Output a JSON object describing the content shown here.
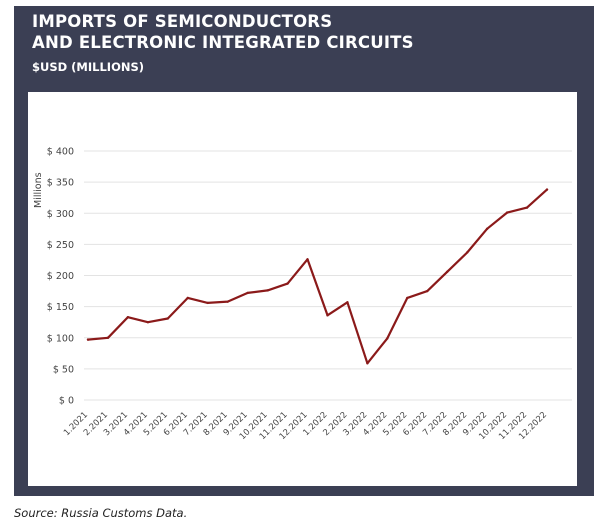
{
  "header": {
    "title_line1": "IMPORTS OF SEMICONDUCTORS",
    "title_line2": "AND ELECTRONIC INTEGRATED CIRCUITS",
    "subtitle": "$USD (MILLIONS)"
  },
  "colors": {
    "frame": "#3b3f54",
    "line": "#8b1a1a",
    "grid": "#e3e3e3"
  },
  "source": "Source: Russia Customs Data.",
  "chart_data": {
    "type": "line",
    "ylabel": "Millions",
    "ylim": [
      0,
      400
    ],
    "yticks": [
      0,
      50,
      100,
      150,
      200,
      250,
      300,
      350,
      400
    ],
    "ytick_labels": [
      "$ 0",
      "$ 50",
      "$ 100",
      "$ 150",
      "$ 200",
      "$ 250",
      "$ 300",
      "$ 350",
      "$ 400"
    ],
    "grid": true,
    "categories": [
      "1.2021",
      "2.2021",
      "3.2021",
      "4.2021",
      "5.2021",
      "6.2021",
      "7.2021",
      "8.2021",
      "9.2021",
      "10.2021",
      "11.2021",
      "12.2021",
      "1.2022",
      "2.2022",
      "3.2022",
      "4.2022",
      "5.2022",
      "6.2022",
      "7.2022",
      "8.2022",
      "9.2022",
      "10.2022",
      "11.2022",
      "12.2022"
    ],
    "series": [
      {
        "values": [
          97,
          100,
          133,
          125,
          131,
          164,
          156,
          158,
          172,
          176,
          187,
          226,
          136,
          157,
          59,
          99,
          164,
          175,
          206,
          237,
          275,
          301,
          309,
          338
        ]
      }
    ]
  }
}
